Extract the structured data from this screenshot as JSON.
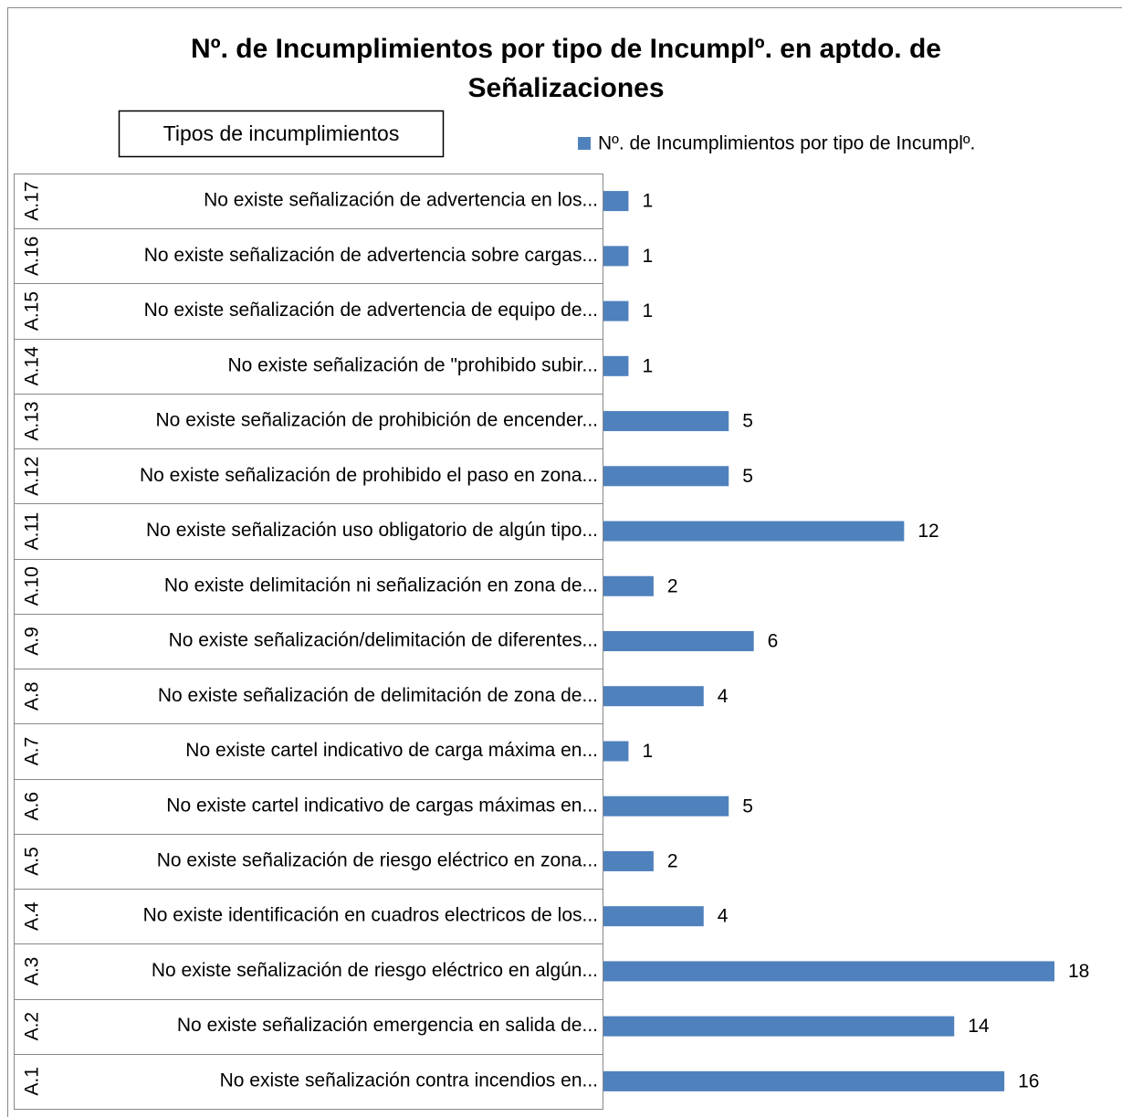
{
  "chart_data": {
    "type": "bar",
    "orientation": "horizontal",
    "title": "Nº. de Incumplimientos por tipo de Incumplº. en aptdo. de Señalizaciones",
    "y_label": "Tipos de incumplimientos",
    "groups": [
      "A.1",
      "A.2",
      "A.3",
      "A.4",
      "A.5",
      "A.6",
      "A.7",
      "A.8",
      "A.9",
      "A.10",
      "A.11",
      "A.12",
      "A.13",
      "A.14",
      "A.15",
      "A.16",
      "A.17"
    ],
    "categories": [
      "No existe señalización contra incendios en...",
      "No existe señalización emergencia en salida de...",
      "No existe señalización de riesgo eléctrico en algún...",
      "No existe identificación en cuadros electricos de los...",
      "No existe señalización de riesgo eléctrico en zona...",
      "No existe cartel indicativo de cargas máximas en...",
      "No existe cartel indicativo de carga máxima en...",
      "No existe señalización de delimitación de zona de...",
      "No existe señalización/delimitación de diferentes...",
      "No existe delimitación ni señalización en zona de...",
      "No existe señalización uso obligatorio de algún tipo...",
      "No existe señalización de prohibido el paso en zona...",
      "No existe señalización de prohibición de encender...",
      "No existe señalización de \"prohibido subir...",
      "No existe señalización de advertencia de equipo de...",
      "No existe señalización de advertencia sobre cargas...",
      "No existe señalización de advertencia en los..."
    ],
    "series": [
      {
        "name": "Nº. de Incumplimientos por tipo de Incumplº.",
        "color": "#4f81bd",
        "values": [
          16,
          14,
          18,
          4,
          2,
          5,
          1,
          4,
          6,
          2,
          12,
          5,
          5,
          1,
          1,
          1,
          1
        ]
      }
    ],
    "legend": "top-right",
    "data_labels": true
  }
}
